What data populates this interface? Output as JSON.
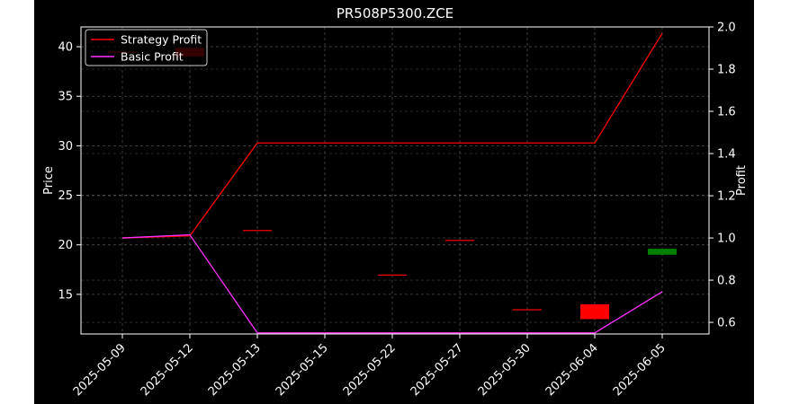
{
  "chart_data": {
    "type": "line",
    "title": "PR508P5300.ZCE",
    "xlabel": "",
    "ylabel_left": "Price",
    "ylabel_right": "Profit",
    "categories": [
      "2025-05-09",
      "2025-05-12",
      "2025-05-13",
      "2025-05-15",
      "2025-05-22",
      "2025-05-27",
      "2025-05-30",
      "2025-06-04",
      "2025-06-05"
    ],
    "ylim_left": [
      11,
      42
    ],
    "yticks_left": [
      15,
      20,
      25,
      30,
      35,
      40
    ],
    "ylim_right": [
      0.545,
      2.0
    ],
    "yticks_right": [
      0.6,
      0.8,
      1.0,
      1.2,
      1.4,
      1.6,
      1.8,
      2.0
    ],
    "grid": true,
    "legend_position": "upper-left",
    "candles": [
      {
        "date": "2025-05-09",
        "open": 39.5,
        "close": 39.5
      },
      {
        "date": "2025-05-12",
        "open": 39.9,
        "close": 39.0
      },
      {
        "date": "2025-05-13",
        "open": 21.5,
        "close": 21.5
      },
      {
        "date": "2025-05-15",
        "open": null,
        "close": null
      },
      {
        "date": "2025-05-22",
        "open": 17.0,
        "close": 17.0
      },
      {
        "date": "2025-05-27",
        "open": 20.5,
        "close": 20.5
      },
      {
        "date": "2025-05-30",
        "open": 13.5,
        "close": 13.5
      },
      {
        "date": "2025-06-04",
        "open": 14.0,
        "close": 12.5
      },
      {
        "date": "2025-06-05",
        "open": 19.0,
        "close": 19.6
      }
    ],
    "series": [
      {
        "name": "Strategy Profit",
        "axis": "right",
        "color": "#ff0000",
        "values": [
          1.0,
          1.01,
          1.45,
          1.45,
          1.45,
          1.45,
          1.45,
          1.45,
          1.97
        ]
      },
      {
        "name": "Basic Profit",
        "axis": "right",
        "color": "#ff33ff",
        "values": [
          1.0,
          1.015,
          0.55,
          0.55,
          0.55,
          0.55,
          0.55,
          0.55,
          0.745
        ]
      }
    ],
    "colors": {
      "up": "#008000",
      "down": "#ff0000",
      "background": "#000000",
      "foreground": "#ffffff",
      "grid": "#808080"
    }
  }
}
